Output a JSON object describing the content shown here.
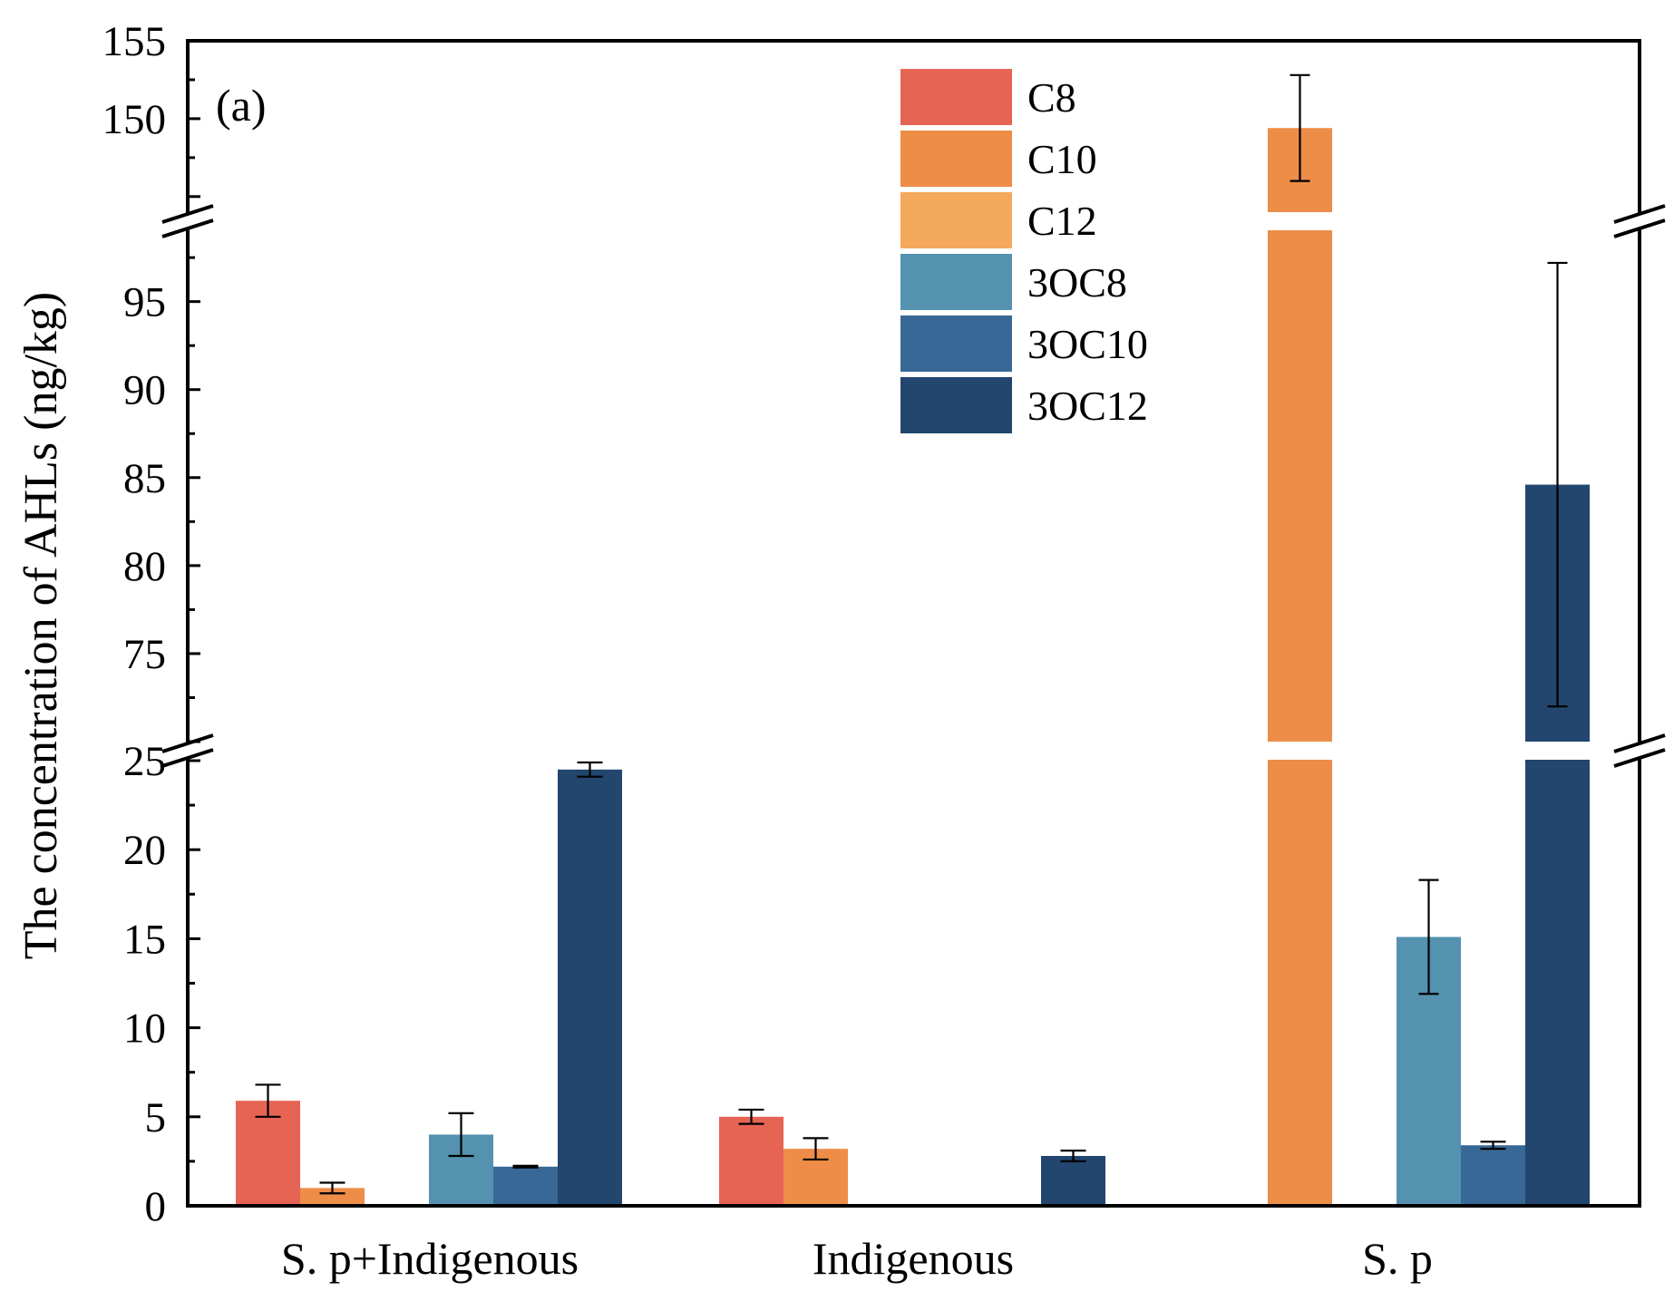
{
  "chart_data": {
    "type": "bar",
    "panel_label": "(a)",
    "ylabel": "The concentration of AHLs (ng/kg)",
    "xlabel": "",
    "categories": [
      "S. p+Indigenous",
      "Indigenous",
      "S. p"
    ],
    "axis_segments": [
      {
        "range": [
          0,
          25
        ],
        "ticks": [
          "0",
          "5",
          "10",
          "15",
          "20",
          "25"
        ]
      },
      {
        "range": [
          70,
          99
        ],
        "ticks": [
          "75",
          "80",
          "85",
          "90",
          "95"
        ]
      },
      {
        "range": [
          144,
          155
        ],
        "ticks": [
          "150",
          "155"
        ]
      }
    ],
    "legend_position": "top-center",
    "series": [
      {
        "name": "C8",
        "color": "#E66454",
        "values": [
          5.9,
          5.0,
          0
        ],
        "errors": [
          0.9,
          0.4,
          0
        ]
      },
      {
        "name": "C10",
        "color": "#EE8D48",
        "values": [
          1.0,
          3.2,
          149.4
        ],
        "errors": [
          0.3,
          0.6,
          3.4
        ]
      },
      {
        "name": "C12",
        "color": "#F5A95C",
        "values": [
          0,
          0,
          0
        ],
        "errors": [
          0,
          0,
          0
        ]
      },
      {
        "name": "3OC8",
        "color": "#5492B0",
        "values": [
          4.0,
          0,
          15.1
        ],
        "errors": [
          1.2,
          0,
          3.2
        ]
      },
      {
        "name": "3OC10",
        "color": "#386896",
        "values": [
          2.2,
          0,
          3.4
        ],
        "errors": [
          0.05,
          0,
          0.2
        ]
      },
      {
        "name": "3OC12",
        "color": "#22466E",
        "values": [
          24.5,
          2.8,
          84.6
        ],
        "errors": [
          0.4,
          0.3,
          12.6
        ]
      }
    ]
  }
}
